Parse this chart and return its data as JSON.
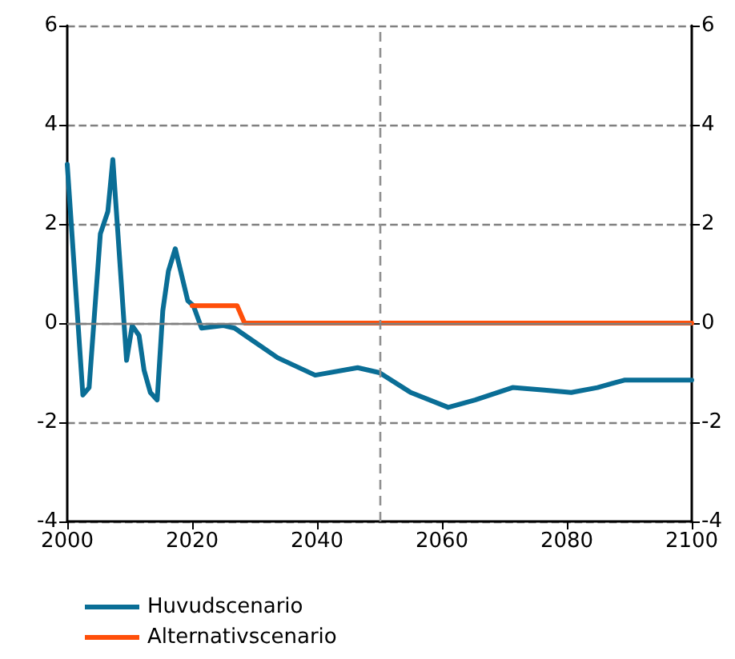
{
  "chart_data": {
    "type": "line",
    "xlim": [
      2000,
      2100
    ],
    "xticks": [
      2000,
      2020,
      2040,
      2060,
      2080,
      2100
    ],
    "ylim": [
      -4,
      6
    ],
    "yticks": [
      -4,
      -2,
      0,
      2,
      4,
      6
    ],
    "y2lim": [
      -4,
      6
    ],
    "y2ticks": [
      -4,
      -2,
      0,
      2,
      4,
      6
    ],
    "grid": "y",
    "legend": "bottom left",
    "marker": "none",
    "line_style": "solid",
    "ref_lines": [
      {
        "axis": "x",
        "value": 2050,
        "color": "#909090",
        "line_style": "dashed"
      },
      {
        "axis": "y",
        "value": 0,
        "color": "#808080",
        "line_style": "solid"
      }
    ],
    "series": [
      {
        "name": "Huvudscenario",
        "color": "#0a6e96",
        "x": [
          2000,
          2002.5,
          2003.5,
          2005.3,
          2006.5,
          2007.3,
          2009.5,
          2010.4,
          2011.5,
          2012.3,
          2013.3,
          2014.4,
          2015.3,
          2016.2,
          2017.3,
          2019.3,
          2020.2,
          2021.5,
          2025,
          2026.8,
          2028.5,
          2033.7,
          2039.7,
          2046.5,
          2050,
          2055,
          2061,
          2065.3,
          2071.3,
          2076.4,
          2080.7,
          2084.9,
          2089.2,
          2093.5,
          2100
        ],
        "values": [
          3.2,
          -1.45,
          -1.3,
          1.8,
          2.25,
          3.3,
          -0.75,
          -0.05,
          -0.25,
          -0.95,
          -1.4,
          -1.55,
          0.25,
          1.05,
          1.5,
          0.45,
          0.35,
          -0.1,
          -0.05,
          -0.1,
          -0.25,
          -0.7,
          -1.05,
          -0.9,
          -1.0,
          -1.4,
          -1.7,
          -1.55,
          -1.3,
          -1.35,
          -1.4,
          -1.3,
          -1.15,
          -1.15,
          -1.15
        ]
      },
      {
        "name": "Alternativscenario",
        "color": "#ff4f0a",
        "x": [
          2020,
          2027.2,
          2028.4,
          2100
        ],
        "values": [
          0.35,
          0.35,
          0,
          0
        ]
      }
    ]
  }
}
